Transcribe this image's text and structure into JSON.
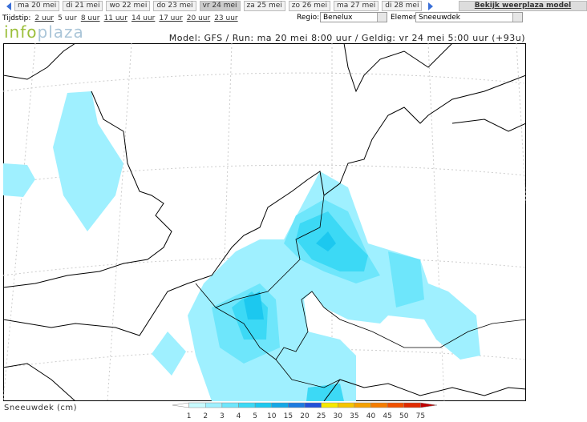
{
  "days": [
    {
      "label": "ma 20 mei"
    },
    {
      "label": "di 21 mei"
    },
    {
      "label": "wo 22 mei"
    },
    {
      "label": "do 23 mei"
    },
    {
      "label": "vr 24 mei",
      "active": true
    },
    {
      "label": "za 25 mei"
    },
    {
      "label": "zo 26 mei"
    },
    {
      "label": "ma 27 mei"
    },
    {
      "label": "di 28 mei"
    }
  ],
  "model_button": "Bekijk weerplaza model",
  "time_label": "Tijdstip:",
  "times": [
    {
      "label": "2 uur"
    },
    {
      "label": "5 uur",
      "active": true
    },
    {
      "label": "8 uur"
    },
    {
      "label": "11 uur"
    },
    {
      "label": "14 uur"
    },
    {
      "label": "17 uur"
    },
    {
      "label": "20 uur"
    },
    {
      "label": "23 uur"
    }
  ],
  "region_label": "Regio:",
  "region": "Benelux",
  "element_label": "Element:",
  "element": "Sneeuwdek",
  "logo": {
    "part1": "info",
    "part2": "plaza"
  },
  "info": "Model: GFS / Run: ma 20 mei 8:00 uur / Geldig: vr 24 mei 5:00 uur (+93u)",
  "legend": {
    "caption": "Sneeuwdek (cm)",
    "labels": [
      1,
      2,
      3,
      4,
      5,
      10,
      15,
      20,
      25,
      30,
      35,
      40,
      45,
      50,
      75
    ]
  }
}
